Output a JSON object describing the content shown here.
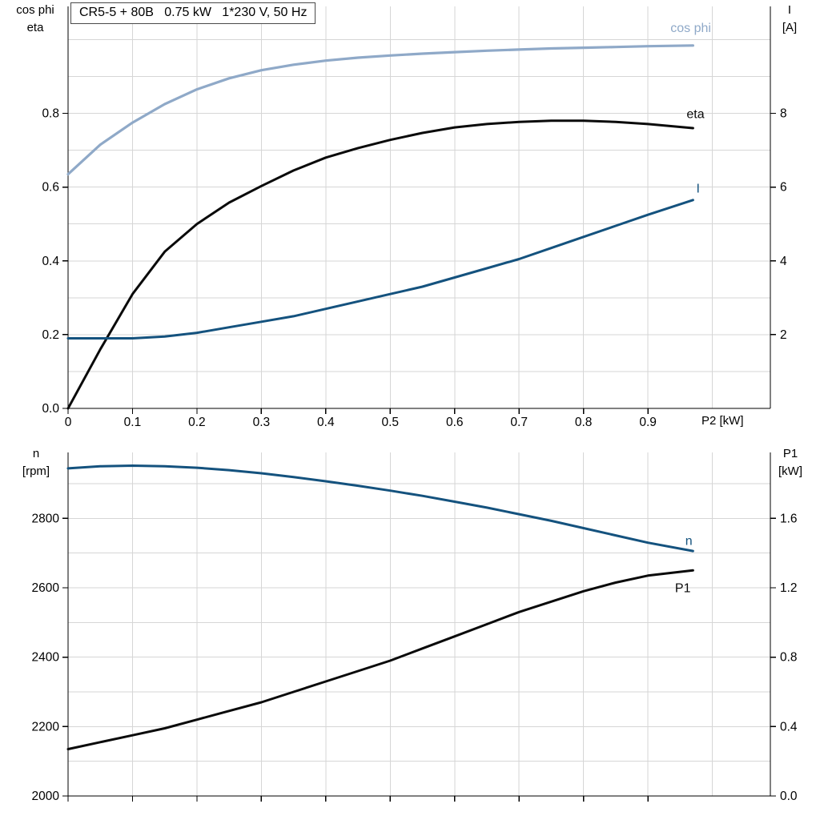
{
  "axes_corner_labels": {
    "top_left": [
      "cos phi",
      "eta"
    ],
    "top_right": [
      "I",
      "[A]"
    ],
    "bottom_left": [
      "n",
      "[rpm]"
    ],
    "bottom_right": [
      "P1",
      "[kW]"
    ],
    "x_axis": "P2 [kW]"
  },
  "colors": {
    "light_blue": "#8fa9c8",
    "dark_blue": "#14527e",
    "black": "#0a0a0a",
    "grid": "#d6d6d6"
  },
  "chart_data": [
    {
      "type": "line",
      "title": "CR5-5 + 80B   0.75 kW   1*230 V, 50 Hz",
      "xlabel": "P2 [kW]",
      "xlim": [
        0,
        1.09
      ],
      "x_tick_values": [
        0,
        0.1,
        0.2,
        0.3,
        0.4,
        0.5,
        0.6,
        0.7,
        0.8,
        0.9
      ],
      "x_tick_labels": [
        "0",
        "0.1",
        "0.2",
        "0.3",
        "0.4",
        "0.5",
        "0.6",
        "0.7",
        "0.8",
        "0.9"
      ],
      "show_x_tick_labels": true,
      "grid": {
        "x_step": 0.1,
        "y_step": 0.1
      },
      "left_axis": {
        "title_lines": [
          "cos phi",
          "eta"
        ],
        "lim": [
          0,
          1.09
        ],
        "tick_values": [
          0,
          0.2,
          0.4,
          0.6,
          0.8
        ],
        "tick_labels": [
          "0.0",
          "0.2",
          "0.4",
          "0.6",
          "0.8"
        ]
      },
      "right_axis": {
        "title_lines": [
          "I",
          "[A]"
        ],
        "lim": [
          0,
          10.9
        ],
        "tick_values": [
          2,
          4,
          6,
          8
        ],
        "tick_labels": [
          "2",
          "4",
          "6",
          "8"
        ]
      },
      "x": [
        0,
        0.05,
        0.1,
        0.15,
        0.2,
        0.25,
        0.3,
        0.35,
        0.4,
        0.45,
        0.5,
        0.55,
        0.6,
        0.65,
        0.7,
        0.75,
        0.8,
        0.85,
        0.9,
        0.97
      ],
      "series": [
        {
          "name": "cos phi",
          "axis": "left",
          "color": "#8fa9c8",
          "width": 3.2,
          "values": [
            0.635,
            0.715,
            0.775,
            0.825,
            0.865,
            0.895,
            0.917,
            0.932,
            0.943,
            0.951,
            0.957,
            0.962,
            0.966,
            0.97,
            0.973,
            0.976,
            0.978,
            0.98,
            0.982,
            0.984
          ],
          "label": {
            "text": "cos phi",
            "x": 0.935,
            "y": 1.02
          }
        },
        {
          "name": "eta",
          "axis": "left",
          "color": "#0a0a0a",
          "width": 3,
          "values": [
            0,
            0.16,
            0.31,
            0.425,
            0.5,
            0.558,
            0.603,
            0.645,
            0.68,
            0.706,
            0.728,
            0.747,
            0.762,
            0.771,
            0.777,
            0.78,
            0.78,
            0.777,
            0.771,
            0.76
          ],
          "label": {
            "text": "eta",
            "x": 0.96,
            "y": 0.787
          }
        },
        {
          "name": "I",
          "axis": "right",
          "color": "#14527e",
          "width": 3,
          "values": [
            1.9,
            1.9,
            1.9,
            1.95,
            2.05,
            2.2,
            2.35,
            2.5,
            2.7,
            2.9,
            3.1,
            3.3,
            3.55,
            3.8,
            4.05,
            4.35,
            4.65,
            4.95,
            5.25,
            5.65
          ],
          "label": {
            "text": "I",
            "x": 0.975,
            "y": 5.85
          }
        }
      ]
    },
    {
      "type": "line",
      "title": "",
      "xlabel": "",
      "xlim": [
        0,
        1.09
      ],
      "x_tick_values": [
        0,
        0.1,
        0.2,
        0.3,
        0.4,
        0.5,
        0.6,
        0.7,
        0.8,
        0.9
      ],
      "x_tick_labels": [],
      "show_x_tick_labels": false,
      "grid": {
        "x_step": 0.1,
        "y_step": 100
      },
      "left_axis": {
        "title_lines": [
          "n",
          "[rpm]"
        ],
        "lim": [
          2000,
          2990
        ],
        "tick_values": [
          2000,
          2200,
          2400,
          2600,
          2800
        ],
        "tick_labels": [
          "2000",
          "2200",
          "2400",
          "2600",
          "2800"
        ]
      },
      "right_axis": {
        "title_lines": [
          "P1",
          "[kW]"
        ],
        "lim": [
          0,
          1.98
        ],
        "tick_values": [
          0,
          0.4,
          0.8,
          1.2,
          1.6
        ],
        "tick_labels": [
          "0.0",
          "0.4",
          "0.8",
          "1.2",
          "1.6"
        ]
      },
      "x": [
        0,
        0.05,
        0.1,
        0.15,
        0.2,
        0.25,
        0.3,
        0.35,
        0.4,
        0.45,
        0.5,
        0.55,
        0.6,
        0.65,
        0.7,
        0.75,
        0.8,
        0.85,
        0.9,
        0.97
      ],
      "series": [
        {
          "name": "n",
          "axis": "left",
          "color": "#14527e",
          "width": 3,
          "values": [
            2944,
            2950,
            2952,
            2950,
            2946,
            2939,
            2930,
            2919,
            2907,
            2894,
            2880,
            2865,
            2848,
            2831,
            2812,
            2793,
            2772,
            2751,
            2730,
            2706
          ],
          "label": {
            "text": "n",
            "x": 0.958,
            "y": 2723
          }
        },
        {
          "name": "P1",
          "axis": "right",
          "color": "#0a0a0a",
          "width": 3,
          "values": [
            0.27,
            0.31,
            0.35,
            0.39,
            0.44,
            0.49,
            0.54,
            0.6,
            0.66,
            0.72,
            0.78,
            0.85,
            0.92,
            0.99,
            1.06,
            1.12,
            1.18,
            1.23,
            1.27,
            1.3
          ],
          "label": {
            "text": "P1",
            "x": 0.942,
            "y": 1.175
          }
        }
      ]
    }
  ]
}
